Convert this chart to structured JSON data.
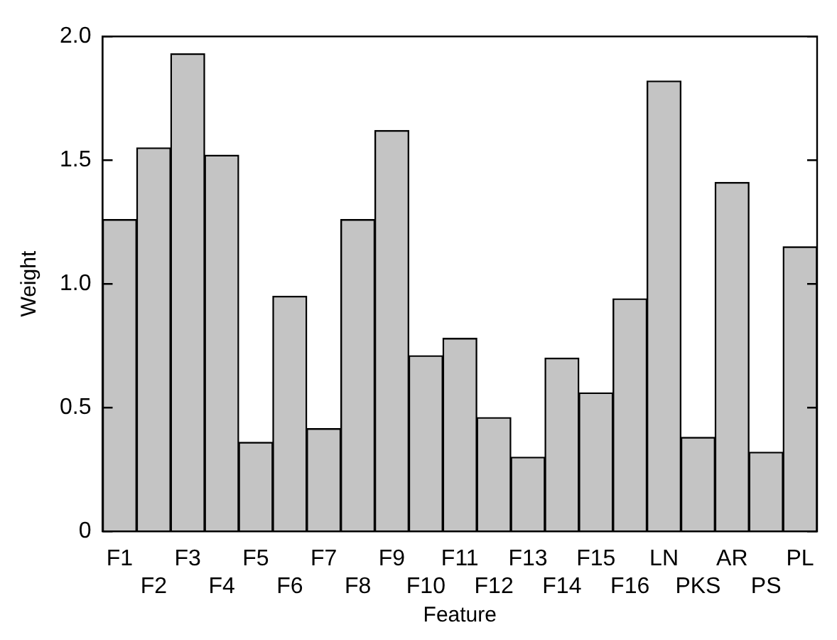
{
  "chart_data": {
    "type": "bar",
    "xlabel": "Feature",
    "ylabel": "Weight",
    "categories": [
      "F1",
      "F2",
      "F3",
      "F4",
      "F5",
      "F6",
      "F7",
      "F8",
      "F9",
      "F10",
      "F11",
      "F12",
      "F13",
      "F14",
      "F15",
      "F16",
      "LN",
      "PKS",
      "AR",
      "PS",
      "PL"
    ],
    "values": [
      1.26,
      1.55,
      1.93,
      1.52,
      0.36,
      0.95,
      0.415,
      1.26,
      1.62,
      0.71,
      0.78,
      0.46,
      0.3,
      0.7,
      0.56,
      0.94,
      1.82,
      0.38,
      1.41,
      0.32,
      1.15
    ],
    "color": "#c4c4c4",
    "ylim": [
      0,
      2
    ],
    "yticks": [
      0,
      {
        "value": 0.5,
        "label": "0.5"
      },
      {
        "value": 1,
        "label": "1.0"
      },
      {
        "value": 1.5,
        "label": "1.5"
      },
      {
        "value": 2,
        "label": "2.0"
      }
    ],
    "legend": false
  }
}
